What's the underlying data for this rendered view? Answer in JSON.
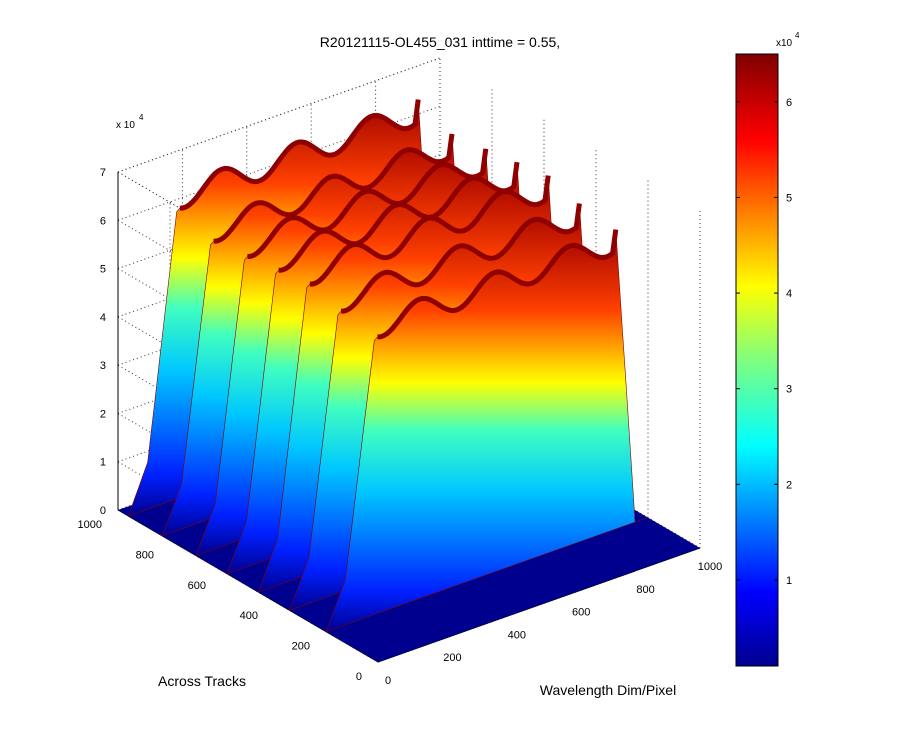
{
  "chart_data": {
    "type": "surface",
    "title": "R20121115-OL455_031 inttime = 0.55,",
    "xlabel": "Wavelength Dim/Pixel",
    "ylabel": "Across Tracks",
    "zlabel": "",
    "x_ticks": [
      "0",
      "200",
      "400",
      "600",
      "800",
      "1000"
    ],
    "y_ticks": [
      "0",
      "200",
      "400",
      "600",
      "800",
      "1000"
    ],
    "z_ticks": [
      "0",
      "1",
      "2",
      "3",
      "4",
      "5",
      "6",
      "7"
    ],
    "z_exponent_label": "x 10",
    "z_exponent": "4",
    "xlim": [
      0,
      1000
    ],
    "ylim": [
      0,
      1000
    ],
    "zlim": [
      0,
      70000
    ],
    "grid": true,
    "colormap": "jet",
    "colorbar": {
      "ticks": [
        "1",
        "2",
        "3",
        "4",
        "5",
        "6"
      ],
      "exponent_label": "x10",
      "exponent": "4",
      "range": [
        1000,
        65000
      ]
    },
    "series": [
      {
        "x_range": [
          0,
          1000
        ],
        "y": 960,
        "peak": 65000
      },
      {
        "x_range": [
          0,
          1000
        ],
        "y": 830,
        "peak": 62000
      },
      {
        "x_range": [
          0,
          1000
        ],
        "y": 700,
        "peak": 63000
      },
      {
        "x_range": [
          0,
          1000
        ],
        "y": 580,
        "peak": 64000
      },
      {
        "x_range": [
          0,
          1000
        ],
        "y": 460,
        "peak": 65000
      },
      {
        "x_range": [
          0,
          1000
        ],
        "y": 340,
        "peak": 63000
      },
      {
        "x_range": [
          0,
          1000
        ],
        "y": 200,
        "peak": 62000
      }
    ]
  }
}
